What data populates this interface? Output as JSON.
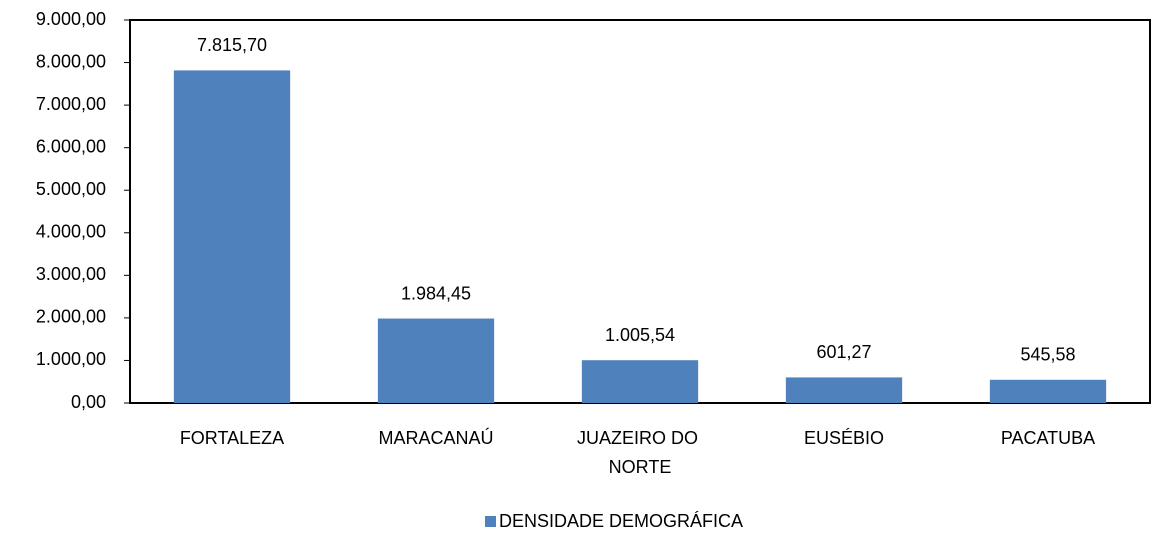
{
  "chart_data": {
    "type": "bar",
    "categories": [
      "FORTALEZA",
      "MARACANAÚ",
      "JUAZEIRO DO NORTE",
      "EUSÉBIO",
      "PACATUBA"
    ],
    "series": [
      {
        "name": "DENSIDADE DEMOGRÁFICA",
        "color": "#4f81bd",
        "values": [
          7815.7,
          1984.45,
          1005.54,
          601.27,
          545.58
        ],
        "value_labels": [
          "7.815,70",
          "1.984,45",
          "1.005,54",
          "601,27",
          "545,58"
        ]
      }
    ],
    "ylim": [
      0,
      9000
    ],
    "yticks": [
      {
        "value": 0,
        "label": "0,00"
      },
      {
        "value": 1000,
        "label": "1.000,00"
      },
      {
        "value": 2000,
        "label": "2.000,00"
      },
      {
        "value": 3000,
        "label": "3.000,00"
      },
      {
        "value": 4000,
        "label": "4.000,00"
      },
      {
        "value": 5000,
        "label": "5.000,00"
      },
      {
        "value": 6000,
        "label": "6.000,00"
      },
      {
        "value": 7000,
        "label": "7.000,00"
      },
      {
        "value": 8000,
        "label": "8.000,00"
      },
      {
        "value": 9000,
        "label": "9.000,00"
      }
    ],
    "grid": false,
    "legend": "bottom"
  }
}
